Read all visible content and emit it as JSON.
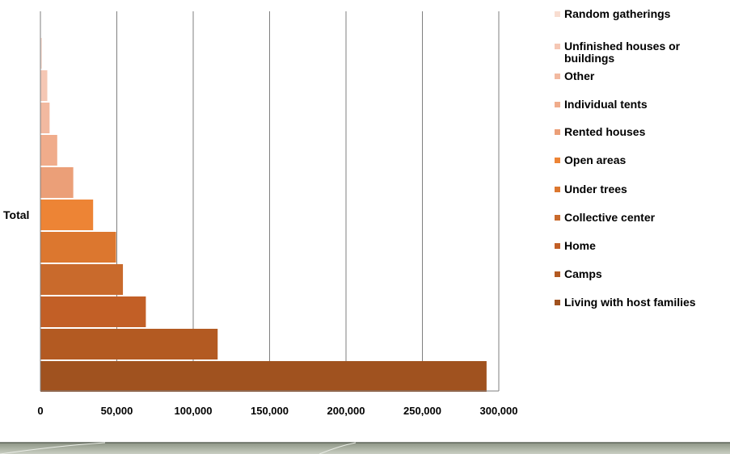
{
  "chart_data": {
    "type": "bar",
    "orientation": "horizontal",
    "categories": [
      "Total"
    ],
    "series": [
      {
        "name": "Living with host families",
        "values": [
          292000
        ],
        "color": "#a0521f"
      },
      {
        "name": "Camps",
        "values": [
          116000
        ],
        "color": "#b35a22"
      },
      {
        "name": "Home",
        "values": [
          69000
        ],
        "color": "#c25f26"
      },
      {
        "name": "Collective center",
        "values": [
          54000
        ],
        "color": "#c96a2c"
      },
      {
        "name": "Under trees",
        "values": [
          49500
        ],
        "color": "#dc772f"
      },
      {
        "name": "Open areas",
        "values": [
          34500
        ],
        "color": "#ed8435"
      },
      {
        "name": "Rented houses",
        "values": [
          21500
        ],
        "color": "#eb9f78"
      },
      {
        "name": "Individual tents",
        "values": [
          11000
        ],
        "color": "#f0ac8b"
      },
      {
        "name": "Other",
        "values": [
          6000
        ],
        "color": "#f2b9a0"
      },
      {
        "name": "Unfinished houses or buildings",
        "values": [
          4500
        ],
        "color": "#f5c7b4"
      },
      {
        "name": "Random gatherings",
        "values": [
          1000
        ],
        "color": "#f8ddd1"
      }
    ],
    "xlim": [
      0,
      300000
    ],
    "xticks": [
      0,
      50000,
      100000,
      150000,
      200000,
      250000,
      300000
    ],
    "xtick_labels": [
      "0",
      "50,000",
      "100,000",
      "150,000",
      "200,000",
      "250,000",
      "300,000"
    ],
    "grid": "vertical",
    "legend_position": "right",
    "title": "",
    "xlabel": "",
    "ylabel": ""
  }
}
